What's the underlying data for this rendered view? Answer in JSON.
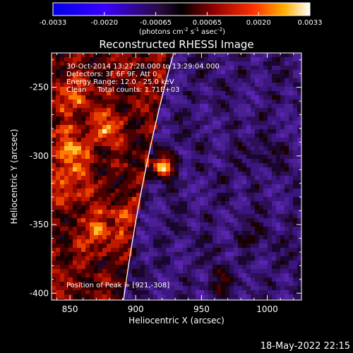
{
  "colorbar": {
    "tick_labels": [
      "-0.0033",
      "-0.0020",
      "-0.00065",
      "0.00065",
      "0.0020",
      "0.0033"
    ],
    "units_label": "(photons cm",
    "units_exp1": "-2",
    "units_mid1": " s",
    "units_exp2": "-1",
    "units_mid2": " asec",
    "units_exp3": "-2",
    "units_end": ")"
  },
  "plot": {
    "title": "Reconstructed RHESSI Image",
    "annotations": [
      "30-Oct-2014 13:27:28.000 to 13:29:04.000",
      "Detectors: 3F 6F 9F, Att 0",
      "Energy Range: 12.0 - 25.0 keV",
      "Clean     Total counts: 1.71E+03"
    ],
    "peak_label": "Position of Peak = [921,-308]",
    "x_axis_label": "Heliocentric X (arcsec)",
    "y_axis_label": "Heliocentric Y (arcsec)",
    "x_ticks": [
      "850",
      "900",
      "950",
      "1000"
    ],
    "y_ticks": [
      "-250",
      "-300",
      "-350",
      "-400"
    ],
    "x_range": [
      836,
      1026
    ],
    "y_range": [
      -405,
      -225
    ],
    "peak": [
      921,
      -308
    ]
  },
  "footer": {
    "timestamp": "18-May-2022 22:15"
  }
}
